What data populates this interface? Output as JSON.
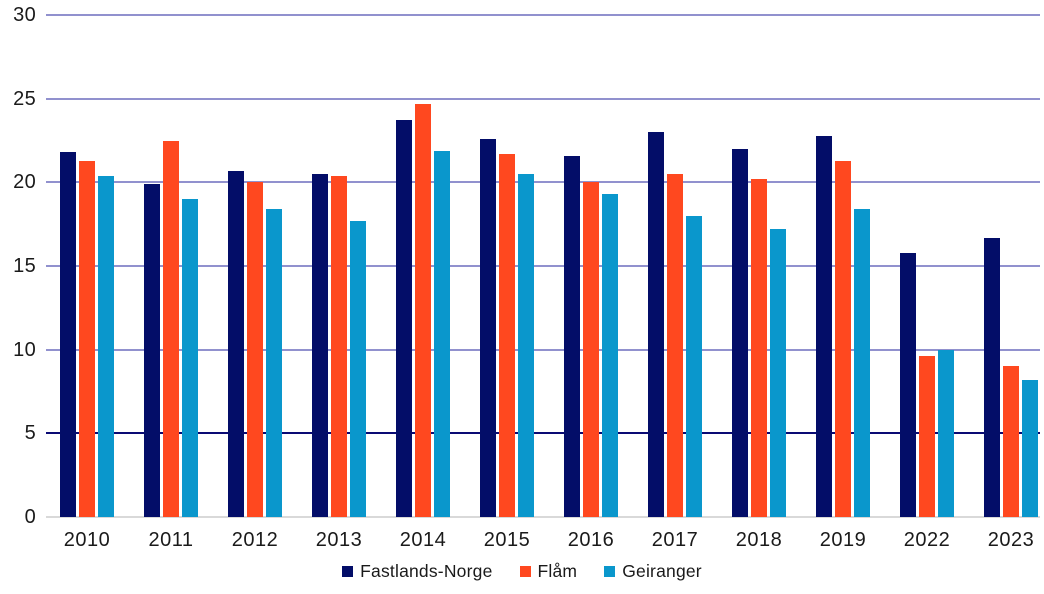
{
  "chart_data": {
    "type": "bar",
    "title": "",
    "xlabel": "",
    "ylabel": "",
    "categories": [
      "2010",
      "2011",
      "2012",
      "2013",
      "2014",
      "2015",
      "2016",
      "2017",
      "2018",
      "2019",
      "2022",
      "2023"
    ],
    "series": [
      {
        "name": "Fastlands-Norge",
        "color": "#030d68",
        "values": [
          21.8,
          19.9,
          20.7,
          20.5,
          23.7,
          22.6,
          21.6,
          23.0,
          22.0,
          22.8,
          15.8,
          16.7
        ]
      },
      {
        "name": "Flåm",
        "color": "#ff481f",
        "values": [
          21.3,
          22.5,
          20.0,
          20.4,
          24.7,
          21.7,
          20.0,
          20.5,
          20.2,
          21.3,
          9.6,
          9.0
        ]
      },
      {
        "name": "Geiranger",
        "color": "#0a97cc",
        "values": [
          20.4,
          19.0,
          18.4,
          17.7,
          21.9,
          20.5,
          19.3,
          18.0,
          17.2,
          18.4,
          10.0,
          8.2
        ]
      }
    ],
    "ylim": [
      0,
      30
    ],
    "yticks": [
      0,
      5,
      10,
      15,
      20,
      25,
      30
    ],
    "grid": true,
    "emphasized_gridline": 5,
    "legend_position": "bottom"
  },
  "style_colors": {
    "gridline": "#9191ce",
    "gridline_emphasized": "#0a0a74",
    "axis_line": "#d9d9d9",
    "text": "#1a1a1a"
  }
}
